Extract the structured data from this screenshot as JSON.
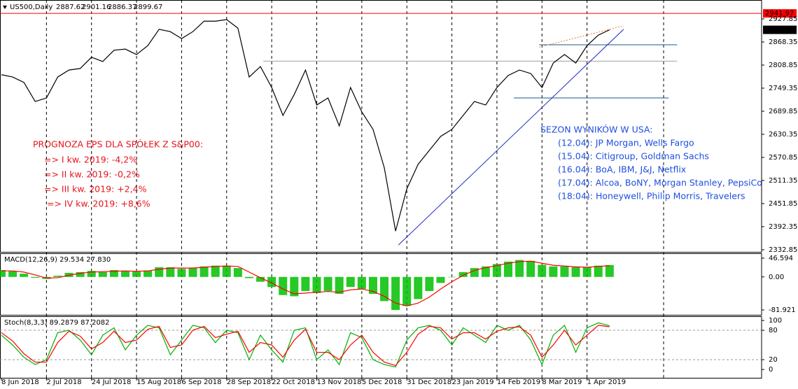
{
  "header": {
    "symbol": "US500,Daily",
    "ohlc": [
      2887.62,
      2901.16,
      2886.37,
      2899.67
    ]
  },
  "annotations": {
    "eps_title": "PROGNOZA EPS DLA SPÓŁEK Z S&P00:",
    "eps": [
      "=> I kw. 2019: -4,2%",
      "=> II kw. 2019: -0,2%",
      "=> III kw. 2019: +2,4%",
      "=> IV kw. 2019: +8,6%"
    ],
    "season_title": "SEZON WYNIKÓW W USA:",
    "season": [
      "(12.04): JP Morgan, Wells Fargo",
      "(15.04): Citigroup, Goldman Sachs",
      "(16.04): BoA, IBM, J&J, Netflix",
      "(17.04): Alcoa, BoNY, Morgan Stanley, PepsiCo",
      "(18:04): Honeywell, Philip Morris, Travelers"
    ]
  },
  "chart_data": [
    {
      "type": "line",
      "color": "#000000",
      "x": [
        0,
        4,
        8,
        12,
        16,
        20,
        24,
        28,
        32,
        36,
        40,
        44,
        48,
        52,
        56,
        60,
        64,
        68,
        72,
        76,
        80,
        84,
        88,
        92,
        96,
        100,
        104,
        108,
        112,
        116,
        120,
        124,
        128,
        132,
        136,
        140,
        144,
        148,
        152,
        156,
        160,
        164,
        168,
        172,
        176,
        180,
        184,
        188,
        192,
        196,
        200,
        204,
        208,
        212,
        216
      ],
      "values": [
        2784,
        2778,
        2764,
        2715,
        2724,
        2778,
        2796,
        2800,
        2829,
        2818,
        2847,
        2850,
        2836,
        2859,
        2901,
        2895,
        2877,
        2895,
        2922,
        2922,
        2926,
        2904,
        2778,
        2805,
        2751,
        2679,
        2733,
        2796,
        2706,
        2724,
        2652,
        2751,
        2688,
        2643,
        2544,
        2381,
        2490,
        2553,
        2589,
        2625,
        2643,
        2679,
        2715,
        2706,
        2751,
        2782,
        2796,
        2787,
        2751,
        2814,
        2836,
        2814,
        2859,
        2886,
        2899.67
      ],
      "xlim": [
        0,
        270
      ],
      "ylim": [
        2327.4,
        2976.5
      ],
      "xticks": [
        {
          "value": 0,
          "label": "8 Jun 2018"
        },
        {
          "value": 16,
          "label": "2 Jul 2018"
        },
        {
          "value": 32,
          "label": "24 Jul 2018"
        },
        {
          "value": 48,
          "label": "15 Aug 2018"
        },
        {
          "value": 64,
          "label": "6 Sep 2018"
        },
        {
          "value": 80,
          "label": "28 Sep 2018"
        },
        {
          "value": 96,
          "label": "22 Oct 2018"
        },
        {
          "value": 112,
          "label": "13 Nov 2018"
        },
        {
          "value": 128,
          "label": "5 Dec 2018"
        },
        {
          "value": 144,
          "label": "31 Dec 2018"
        },
        {
          "value": 160,
          "label": "23 Jan 2019"
        },
        {
          "value": 176,
          "label": "14 Feb 2019"
        },
        {
          "value": 192,
          "label": "8 Mar 2019"
        },
        {
          "value": 208,
          "label": "1 Apr 2019"
        }
      ],
      "yticks": [
        2927.85,
        2868.35,
        2808.85,
        2749.35,
        2689.85,
        2630.35,
        2570.85,
        2511.35,
        2451.85,
        2392.35,
        2332.85
      ],
      "level": {
        "value": 2941.97,
        "color": "#ff0000"
      },
      "last_price": 2899.67,
      "segments": [
        {
          "x": [
            93,
            240
          ],
          "y": [
            2819,
            2819
          ],
          "color": "#a0a0a0"
        },
        {
          "x": [
            191,
            240
          ],
          "y": [
            2861,
            2861
          ],
          "color": "#1a5a8a"
        },
        {
          "x": [
            182,
            237
          ],
          "y": [
            2724,
            2724
          ],
          "color": "#1a5a8a"
        },
        {
          "x": [
            141,
            221
          ],
          "y": [
            2345,
            2901
          ],
          "color": "#2030c0"
        },
        {
          "x": [
            191,
            221
          ],
          "y": [
            2855,
            2910
          ],
          "color": "#e08040",
          "dashed": true
        }
      ]
    },
    {
      "type": "macd",
      "title": "MACD(12,26,9) 29.534 27.830",
      "ylim": [
        -94.1,
        58.7
      ],
      "yticks": [
        46.594,
        {
          "value": 0,
          "label": "0.00"
        },
        -81.921
      ],
      "series": [
        {
          "type": "bar",
          "color": "#00c000",
          "values": [
            17,
            14,
            8,
            -2,
            -5,
            3,
            10,
            12,
            15,
            12,
            17,
            15,
            13,
            16,
            24,
            24,
            20,
            22,
            26,
            28,
            28,
            22,
            -3,
            -12,
            -25,
            -45,
            -48,
            -35,
            -40,
            -35,
            -42,
            -25,
            -30,
            -42,
            -60,
            -82,
            -72,
            -55,
            -35,
            -15,
            0,
            12,
            22,
            26,
            32,
            38,
            42,
            40,
            30,
            26,
            26,
            24,
            24,
            28,
            29.534
          ]
        },
        {
          "type": "line",
          "color": "#ff0000",
          "values": [
            15,
            15,
            12,
            5,
            -3,
            -2,
            4,
            9,
            12,
            13,
            14,
            15,
            14,
            15,
            19,
            22,
            22,
            22,
            24,
            26,
            27,
            26,
            12,
            -2,
            -15,
            -30,
            -42,
            -40,
            -38,
            -36,
            -38,
            -32,
            -30,
            -36,
            -48,
            -65,
            -72,
            -65,
            -50,
            -30,
            -12,
            4,
            16,
            23,
            28,
            34,
            38,
            39,
            34,
            29,
            27,
            25,
            24,
            26,
            27.83
          ]
        }
      ]
    },
    {
      "type": "stochastic",
      "title": "Stoch(8,3,3) 89.2879 87.2082",
      "ylim": [
        -17,
        108.6
      ],
      "yticks": [
        100,
        80,
        20,
        0
      ],
      "levels": [
        80,
        20
      ],
      "series": [
        {
          "type": "line",
          "color": "#00b000",
          "values": [
            70,
            50,
            25,
            10,
            20,
            75,
            80,
            60,
            30,
            70,
            85,
            40,
            70,
            90,
            85,
            30,
            60,
            90,
            85,
            55,
            80,
            75,
            20,
            70,
            40,
            15,
            80,
            85,
            20,
            40,
            10,
            75,
            65,
            20,
            10,
            5,
            60,
            85,
            90,
            80,
            50,
            85,
            70,
            55,
            90,
            80,
            90,
            60,
            10,
            70,
            90,
            35,
            85,
            95,
            89.2879
          ]
        },
        {
          "type": "line",
          "color": "#ff0000",
          "values": [
            75,
            58,
            32,
            15,
            15,
            55,
            78,
            68,
            42,
            55,
            78,
            55,
            60,
            82,
            88,
            45,
            50,
            80,
            88,
            65,
            72,
            78,
            35,
            55,
            50,
            25,
            60,
            82,
            35,
            35,
            20,
            50,
            70,
            35,
            15,
            8,
            35,
            72,
            88,
            85,
            62,
            75,
            75,
            62,
            78,
            85,
            87,
            70,
            25,
            50,
            80,
            50,
            70,
            90,
            87.2082
          ]
        }
      ]
    }
  ]
}
